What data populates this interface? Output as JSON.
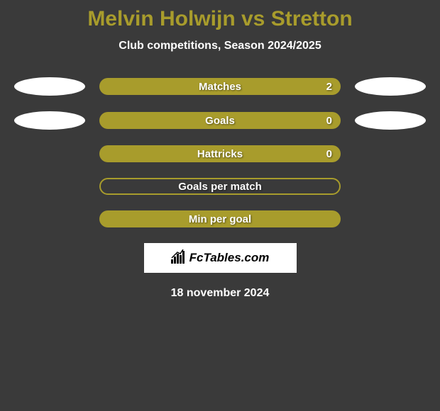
{
  "title": "Melvin Holwijn vs Stretton",
  "subtitle": "Club competitions, Season 2024/2025",
  "rows": [
    {
      "label": "Matches",
      "value": "2",
      "filled": true,
      "show_left_ellipse": true,
      "show_right_ellipse": true,
      "show_value": true
    },
    {
      "label": "Goals",
      "value": "0",
      "filled": true,
      "show_left_ellipse": true,
      "show_right_ellipse": true,
      "show_value": true
    },
    {
      "label": "Hattricks",
      "value": "0",
      "filled": true,
      "show_left_ellipse": false,
      "show_right_ellipse": false,
      "show_value": true
    },
    {
      "label": "Goals per match",
      "value": "",
      "filled": false,
      "show_left_ellipse": false,
      "show_right_ellipse": false,
      "show_value": false
    },
    {
      "label": "Min per goal",
      "value": "",
      "filled": true,
      "show_left_ellipse": false,
      "show_right_ellipse": false,
      "show_value": false
    }
  ],
  "logo_text": "FcTables.com",
  "date": "18 november 2024",
  "colors": {
    "background": "#3a3a3a",
    "accent": "#a89c2c",
    "text": "#ffffff",
    "ellipse": "#ffffff",
    "logo_bg": "#ffffff",
    "logo_text": "#000000"
  }
}
